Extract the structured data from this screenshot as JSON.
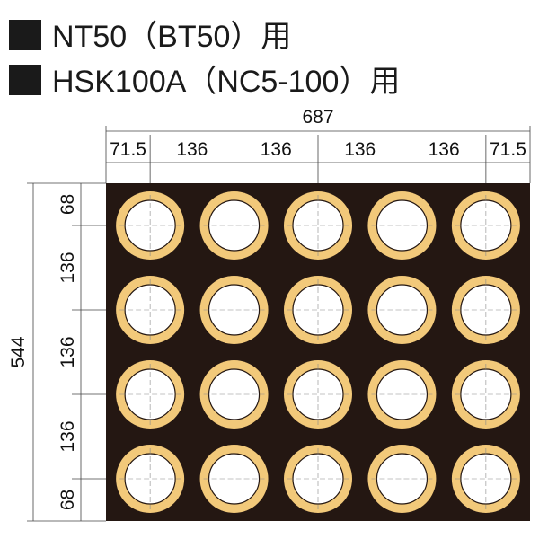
{
  "header": {
    "lines": [
      "NT50（BT50）用",
      "HSK100A（NC5-100）用"
    ]
  },
  "drawing": {
    "width_total": 687,
    "width_segments": [
      71.5,
      136,
      136,
      136,
      136,
      71.5
    ],
    "height_total": 544,
    "height_segments": [
      68,
      136,
      136,
      136,
      68
    ]
  }
}
